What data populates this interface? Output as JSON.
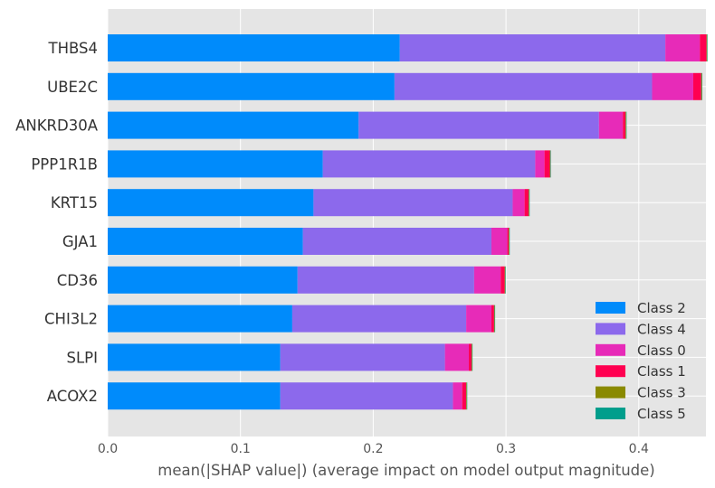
{
  "chart_data": {
    "type": "bar",
    "orientation": "horizontal",
    "stacked": true,
    "title": "",
    "xlabel": "mean(|SHAP value|) (average impact on model output magnitude)",
    "ylabel": "",
    "xlim": [
      0,
      0.45
    ],
    "xticks": [
      "0.0",
      "0.1",
      "0.2",
      "0.3",
      "0.4"
    ],
    "grid": true,
    "legend_position": "bottom-right",
    "categories": [
      "THBS4",
      "UBE2C",
      "ANKRD30A",
      "PPP1R1B",
      "KRT15",
      "GJA1",
      "CD36",
      "CHI3L2",
      "SLPI",
      "ACOX2"
    ],
    "series": [
      {
        "name": "Class 2",
        "color": "#008bfb",
        "values": [
          0.22,
          0.216,
          0.189,
          0.162,
          0.155,
          0.147,
          0.143,
          0.139,
          0.13,
          0.13
        ]
      },
      {
        "name": "Class 4",
        "color": "#8c69ec",
        "values": [
          0.2,
          0.194,
          0.181,
          0.16,
          0.15,
          0.142,
          0.133,
          0.131,
          0.124,
          0.13
        ]
      },
      {
        "name": "Class 0",
        "color": "#e72bb8",
        "values": [
          0.026,
          0.031,
          0.018,
          0.007,
          0.009,
          0.012,
          0.02,
          0.019,
          0.018,
          0.007
        ]
      },
      {
        "name": "Class 1",
        "color": "#ff0051",
        "values": [
          0.005,
          0.006,
          0.002,
          0.004,
          0.003,
          0.001,
          0.003,
          0.002,
          0.002,
          0.003
        ]
      },
      {
        "name": "Class 3",
        "color": "#8a8a00",
        "values": [
          0.0005,
          0.0005,
          0.0005,
          0.0005,
          0.0005,
          0.0005,
          0.0005,
          0.0005,
          0.0005,
          0.0005
        ]
      },
      {
        "name": "Class 5",
        "color": "#009e8c",
        "values": [
          0.0003,
          0.0003,
          0.0003,
          0.0003,
          0.0003,
          0.0003,
          0.0003,
          0.0003,
          0.0003,
          0.0003
        ]
      }
    ]
  }
}
